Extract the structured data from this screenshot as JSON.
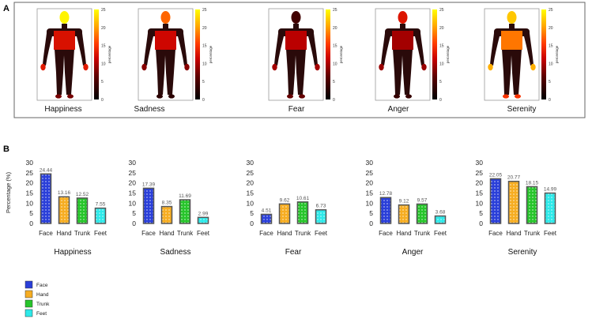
{
  "panel_a": {
    "letter": "A",
    "colorbar_ticks": [
      "25",
      "20",
      "15",
      "10",
      "5",
      "0"
    ],
    "colorbar_label": "percentage",
    "colorbar_max": 25
  },
  "panel_b": {
    "letter": "B",
    "ylabel": "Percentage (%)"
  },
  "colors": {
    "Face": "#2a3fd9",
    "Hand": "#f6ad22",
    "Trunk": "#27c52b",
    "Feet": "#2ee9e9"
  },
  "legend": [
    "Face",
    "Hand",
    "Trunk",
    "Feet"
  ],
  "chart_data": [
    {
      "type": "bar",
      "title": "Happiness",
      "categories": [
        "Face",
        "Hand",
        "Trunk",
        "Feet"
      ],
      "values": [
        24.44,
        13.16,
        12.52,
        7.55
      ],
      "value_labels": [
        "24.44",
        "13.16",
        "12.52",
        "7.55"
      ],
      "ylim": [
        0,
        30
      ],
      "yticks": [
        "30",
        "25",
        "20",
        "15",
        "10",
        "5",
        "0"
      ],
      "ylabel": "Percentage (%)",
      "grid": false
    },
    {
      "type": "bar",
      "title": "Sadness",
      "categories": [
        "Face",
        "Hand",
        "Trunk",
        "Feet"
      ],
      "values": [
        17.39,
        8.35,
        11.69,
        2.99
      ],
      "value_labels": [
        "17.39",
        "8.35",
        "11.69",
        "2.99"
      ],
      "ylim": [
        0,
        30
      ],
      "yticks": [
        "30",
        "25",
        "20",
        "15",
        "10",
        "5",
        "0"
      ],
      "grid": false
    },
    {
      "type": "bar",
      "title": "Fear",
      "categories": [
        "Face",
        "Hand",
        "Trunk",
        "Feet"
      ],
      "values": [
        4.51,
        9.62,
        10.61,
        6.73
      ],
      "value_labels": [
        "4.51",
        "9.62",
        "10.61",
        "6.73"
      ],
      "ylim": [
        0,
        30
      ],
      "yticks": [
        "30",
        "25",
        "20",
        "15",
        "10",
        "5",
        "0"
      ],
      "grid": false
    },
    {
      "type": "bar",
      "title": "Anger",
      "categories": [
        "Face",
        "Hand",
        "Trunk",
        "Feet"
      ],
      "values": [
        12.78,
        9.12,
        9.57,
        3.68
      ],
      "value_labels": [
        "12.78",
        "9.12",
        "9.57",
        "3.68"
      ],
      "ylim": [
        0,
        30
      ],
      "yticks": [
        "30",
        "25",
        "20",
        "15",
        "10",
        "5",
        "0"
      ],
      "grid": false
    },
    {
      "type": "bar",
      "title": "Serenity",
      "categories": [
        "Face",
        "Hand",
        "Trunk",
        "Feet"
      ],
      "values": [
        22.05,
        20.77,
        18.15,
        14.99
      ],
      "value_labels": [
        "22.05",
        "20.77",
        "18.15",
        "14.99"
      ],
      "ylim": [
        0,
        30
      ],
      "yticks": [
        "30",
        "25",
        "20",
        "15",
        "10",
        "5",
        "0"
      ],
      "grid": false
    }
  ]
}
